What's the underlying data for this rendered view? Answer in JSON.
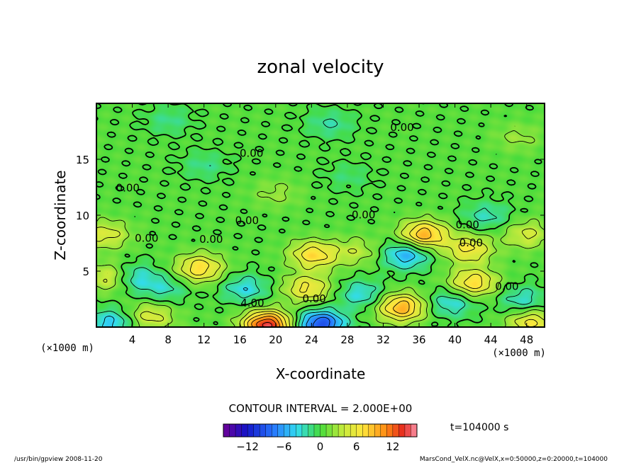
{
  "chart_data": {
    "type": "heatmap",
    "title": "zonal velocity",
    "xlabel": "X-coordinate",
    "ylabel": "Z-coordinate",
    "x_unit": "(×1000 m)",
    "y_unit": "(×1000 m)",
    "xlim": [
      0,
      50
    ],
    "ylim": [
      0,
      20
    ],
    "x_ticks": [
      4,
      8,
      12,
      16,
      20,
      24,
      28,
      32,
      36,
      40,
      44,
      48
    ],
    "y_ticks": [
      5,
      10,
      15
    ],
    "contour_interval_text": "CONTOUR INTERVAL = 2.000E+00",
    "time_text": "t=104000  s",
    "colorbar": {
      "range": [
        -16,
        16
      ],
      "ticks": [
        -12,
        -6,
        0,
        6,
        12
      ],
      "tick_labels": [
        "−12",
        "−6",
        "0",
        "6",
        "12"
      ]
    },
    "contour_labels": [
      {
        "x": 34.1,
        "z": 17.9,
        "text": "0.00"
      },
      {
        "x": 17.3,
        "z": 15.6,
        "text": "0.00"
      },
      {
        "x": 3.5,
        "z": 12.5,
        "text": "0.00"
      },
      {
        "x": 29.8,
        "z": 10.1,
        "text": "0.00"
      },
      {
        "x": 16.8,
        "z": 9.6,
        "text": "0.00"
      },
      {
        "x": 41.4,
        "z": 9.2,
        "text": "0.00"
      },
      {
        "x": 5.6,
        "z": 8.0,
        "text": "0.00"
      },
      {
        "x": 12.8,
        "z": 7.9,
        "text": "0.00"
      },
      {
        "x": 41.8,
        "z": 7.6,
        "text": "0.00"
      },
      {
        "x": 45.8,
        "z": 3.7,
        "text": "0.00"
      },
      {
        "x": 24.3,
        "z": 2.6,
        "text": "0.00"
      },
      {
        "x": 17.4,
        "z": 2.2,
        "text": "4.00"
      }
    ],
    "field_features": [
      {
        "x": 19,
        "z": 0.2,
        "value": 14
      },
      {
        "x": 25,
        "z": 0.3,
        "value": -10
      },
      {
        "x": 34,
        "z": 1.8,
        "value": 9
      },
      {
        "x": 34.5,
        "z": 6.5,
        "value": -6
      },
      {
        "x": 36.5,
        "z": 8.3,
        "value": 9
      },
      {
        "x": 4,
        "z": 4.5,
        "value": -4.5
      },
      {
        "x": 11.5,
        "z": 5.3,
        "value": 7
      },
      {
        "x": 16.5,
        "z": 3.5,
        "value": -4
      },
      {
        "x": 24.2,
        "z": 6.5,
        "value": 7
      },
      {
        "x": 23.5,
        "z": 3.5,
        "value": 6
      },
      {
        "x": 29.5,
        "z": 3,
        "value": -4
      },
      {
        "x": 39.5,
        "z": 2.2,
        "value": -4
      },
      {
        "x": 41.5,
        "z": 7,
        "value": 6
      },
      {
        "x": 42,
        "z": 4,
        "value": 7
      },
      {
        "x": 47.5,
        "z": 2.5,
        "value": -3.5
      },
      {
        "x": 6,
        "z": 1,
        "value": 4.5
      },
      {
        "x": 48.5,
        "z": 0.4,
        "value": 6
      },
      {
        "x": 1.5,
        "z": 0.4,
        "value": -5
      },
      {
        "x": 1.5,
        "z": 4.5,
        "value": 5
      },
      {
        "x": 7.5,
        "z": 3.5,
        "value": -3
      },
      {
        "x": 1,
        "z": 8.3,
        "value": 4.5
      },
      {
        "x": 48,
        "z": 8.3,
        "value": 4
      },
      {
        "x": 29,
        "z": 6.8,
        "value": 3
      },
      {
        "x": 43.5,
        "z": 10,
        "value": -3
      },
      {
        "x": 26,
        "z": 18.2,
        "value": -2.5
      },
      {
        "x": 12,
        "z": 14.5,
        "value": -2
      },
      {
        "x": 8,
        "z": 18.5,
        "value": -2
      },
      {
        "x": 20,
        "z": 12,
        "value": 2
      },
      {
        "x": 28,
        "z": 13.5,
        "value": -1.5
      },
      {
        "x": 47,
        "z": 17,
        "value": 2
      }
    ]
  },
  "footer": {
    "left": "/usr/bin/gpview   2008-11-20",
    "right": "MarsCond_VelX.nc@VelX,x=0:50000,z=0:20000,t=104000"
  }
}
